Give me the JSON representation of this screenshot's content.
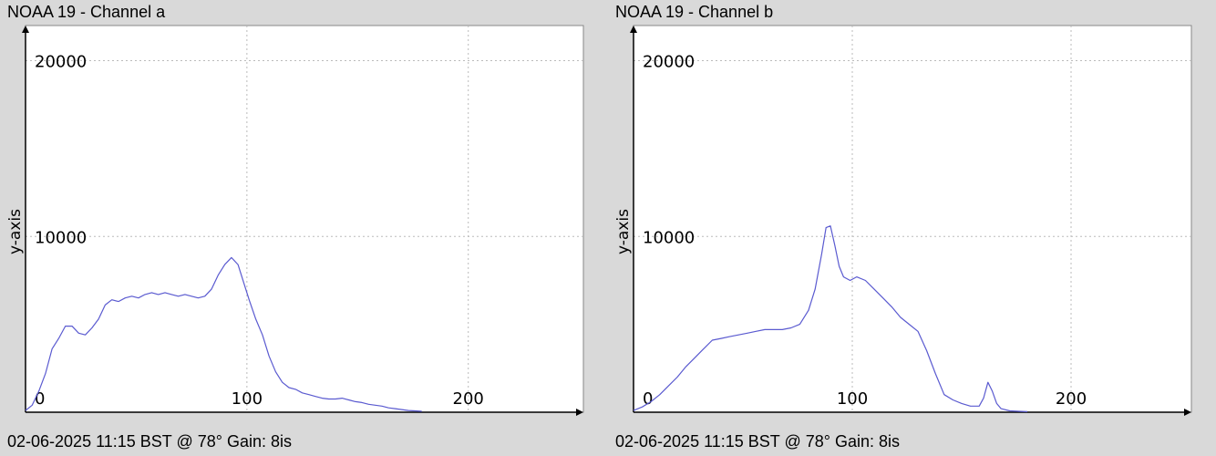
{
  "chart_data": [
    {
      "type": "line",
      "title": "NOAA 19 - Channel a",
      "footer": "02-06-2025 11:15 BST @ 78° Gain: 8is",
      "xlabel": "",
      "ylabel": "y-axis",
      "xlim": [
        0,
        252
      ],
      "ylim": [
        0,
        22000
      ],
      "xticks": [
        0,
        100,
        200
      ],
      "yticks": [
        0,
        10000,
        20000
      ],
      "grid": true,
      "line_color": "#5a5ad0",
      "series": [
        {
          "x": [
            0,
            3,
            6,
            9,
            12,
            15,
            18,
            21,
            24,
            27,
            30,
            33,
            36,
            39,
            42,
            45,
            48,
            51,
            54,
            57,
            60,
            63,
            66,
            69,
            72,
            75,
            78,
            81,
            84,
            87,
            90,
            93,
            96,
            99,
            101,
            104,
            107,
            110,
            113,
            116,
            119,
            122,
            125,
            128,
            131,
            134,
            137,
            140,
            143,
            146,
            149,
            152,
            155,
            158,
            161,
            164,
            167,
            170,
            173,
            176,
            179
          ],
          "y": [
            100,
            400,
            1200,
            2200,
            3600,
            4200,
            4900,
            4900,
            4500,
            4400,
            4800,
            5300,
            6100,
            6400,
            6300,
            6500,
            6600,
            6500,
            6700,
            6800,
            6700,
            6800,
            6700,
            6600,
            6700,
            6600,
            6500,
            6600,
            7000,
            7800,
            8400,
            8800,
            8400,
            7200,
            6400,
            5300,
            4400,
            3200,
            2300,
            1700,
            1400,
            1300,
            1100,
            1000,
            900,
            800,
            750,
            750,
            800,
            700,
            600,
            550,
            450,
            400,
            350,
            250,
            200,
            150,
            100,
            80,
            50
          ]
        }
      ]
    },
    {
      "type": "line",
      "title": "NOAA 19 - Channel b",
      "footer": "02-06-2025 11:15 BST @ 78° Gain: 8is",
      "xlabel": "",
      "ylabel": "y-axis",
      "xlim": [
        0,
        255
      ],
      "ylim": [
        0,
        22000
      ],
      "xticks": [
        0,
        100,
        200
      ],
      "yticks": [
        0,
        10000,
        20000
      ],
      "grid": true,
      "line_color": "#5a5ad0",
      "series": [
        {
          "x": [
            0,
            4,
            8,
            12,
            16,
            20,
            24,
            28,
            32,
            36,
            40,
            44,
            48,
            52,
            56,
            60,
            64,
            68,
            72,
            76,
            80,
            83,
            86,
            88,
            90,
            92,
            94,
            96,
            99,
            102,
            106,
            110,
            114,
            118,
            122,
            126,
            130,
            134,
            138,
            142,
            146,
            150,
            154,
            158,
            160,
            162,
            164,
            166,
            168,
            172,
            176,
            180
          ],
          "y": [
            100,
            300,
            600,
            1000,
            1500,
            2000,
            2600,
            3100,
            3600,
            4100,
            4200,
            4300,
            4400,
            4500,
            4600,
            4700,
            4700,
            4700,
            4800,
            5000,
            5800,
            7000,
            9000,
            10500,
            10600,
            9500,
            8300,
            7700,
            7500,
            7700,
            7500,
            7000,
            6500,
            6000,
            5400,
            5000,
            4600,
            3500,
            2200,
            1000,
            700,
            500,
            350,
            350,
            800,
            1700,
            1200,
            500,
            200,
            80,
            50,
            30
          ]
        }
      ]
    }
  ]
}
